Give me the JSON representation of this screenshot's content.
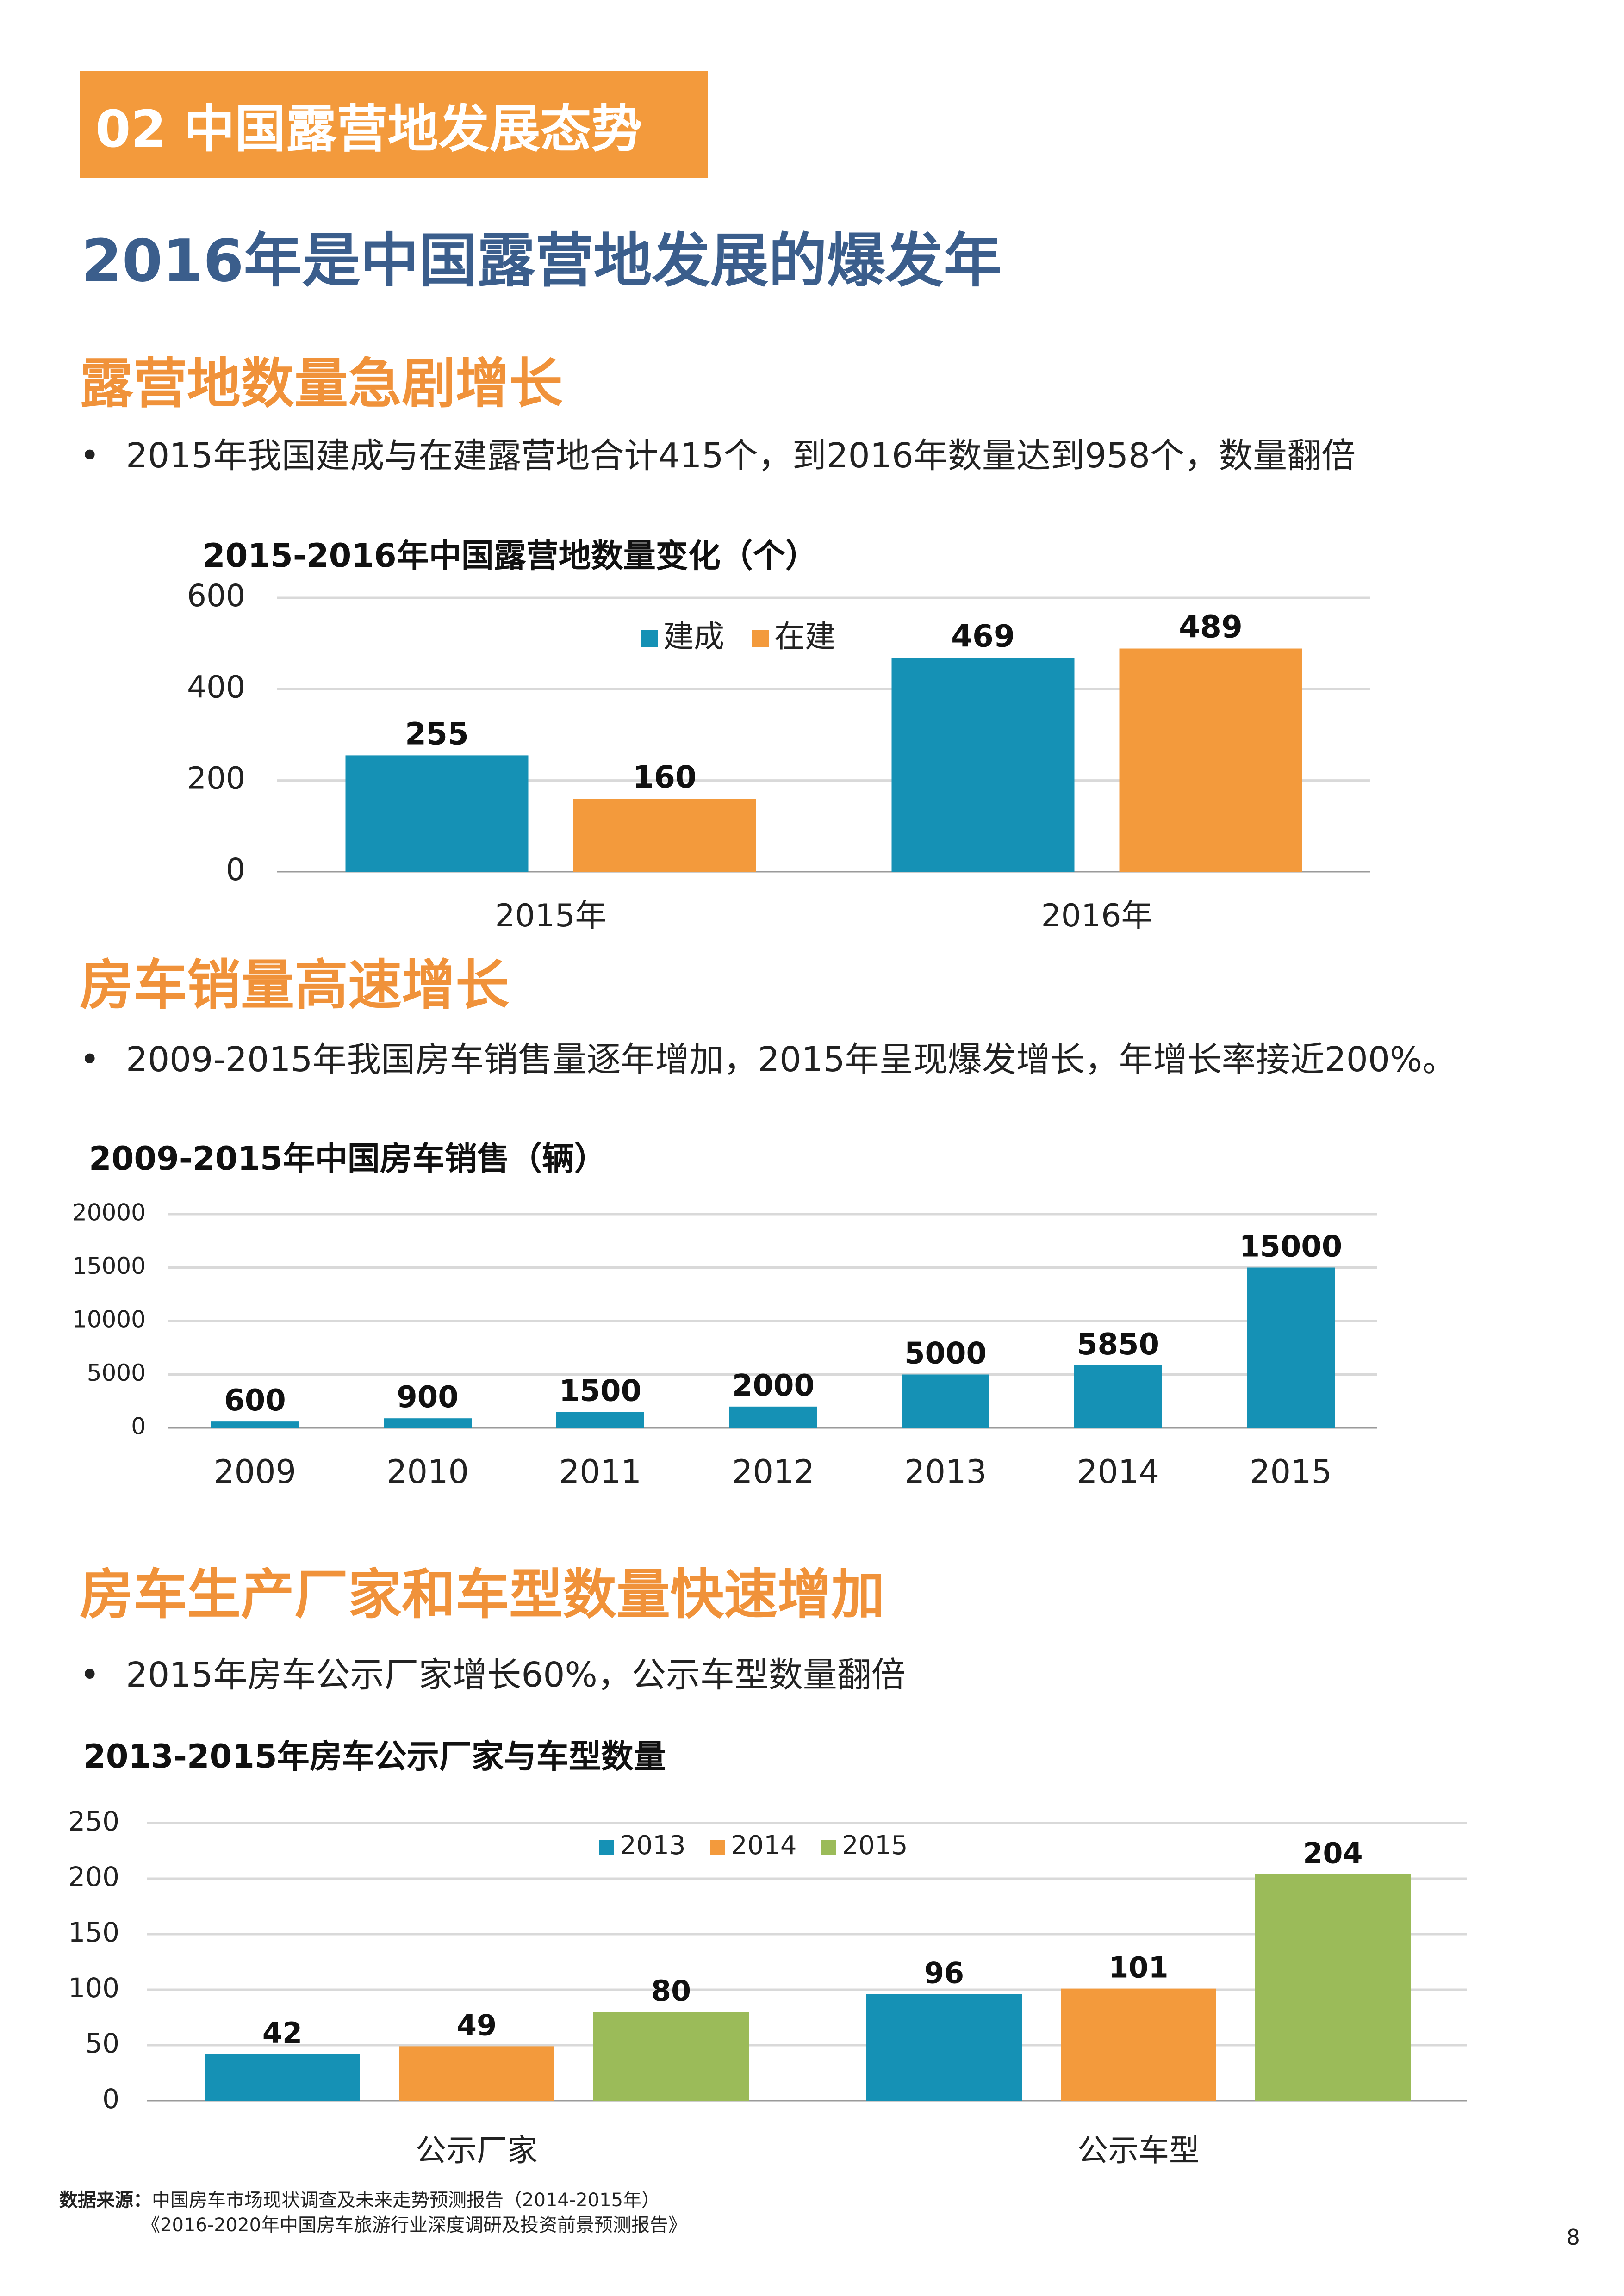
{
  "section_tag": "02 中国露营地发展态势",
  "headline": "2016年是中国露营地发展的爆发年",
  "sections": [
    {
      "heading": "露营地数量急剧增长",
      "bullet": "2015年我国建成与在建露营地合计415个，到2016年数量达到958个，数量翻倍"
    },
    {
      "heading": "房车销量高速增长",
      "bullet": "2009-2015年我国房车销售量逐年增加，2015年呈现爆发增长，年增长率接近200%。"
    },
    {
      "heading": "房车生产厂家和车型数量快速增加",
      "bullet": "2015年房车公示厂家增长60%，公示车型数量翻倍"
    }
  ],
  "bullet_symbol": "•",
  "chart_data": [
    {
      "type": "bar",
      "title": "2015-2016年中国露营地数量变化（个）",
      "categories": [
        "2015年",
        "2016年"
      ],
      "series": [
        {
          "name": "建成",
          "values": [
            255,
            469
          ],
          "color": "#1591b5"
        },
        {
          "name": "在建",
          "values": [
            160,
            489
          ],
          "color": "#f39a3c"
        }
      ],
      "ylim": [
        0,
        600
      ],
      "yticks": [
        0,
        200,
        400,
        600
      ],
      "legend": "top-right",
      "grid": true
    },
    {
      "type": "bar",
      "title": "2009-2015年中国房车销售（辆）",
      "categories": [
        "2009",
        "2010",
        "2011",
        "2012",
        "2013",
        "2014",
        "2015"
      ],
      "series": [
        {
          "values": [
            600,
            900,
            1500,
            2000,
            5000,
            5850,
            15000
          ],
          "color": "#1591b5"
        }
      ],
      "ylim": [
        0,
        20000
      ],
      "yticks": [
        0,
        5000,
        10000,
        15000,
        20000
      ],
      "grid": true
    },
    {
      "type": "bar",
      "title": "2013-2015年房车公示厂家与车型数量",
      "categories": [
        "公示厂家",
        "公示车型"
      ],
      "series": [
        {
          "name": "2013",
          "values": [
            42,
            96
          ],
          "color": "#1591b5"
        },
        {
          "name": "2014",
          "values": [
            49,
            101
          ],
          "color": "#f39a3c"
        },
        {
          "name": "2015",
          "values": [
            80,
            204
          ],
          "color": "#9bbb59"
        }
      ],
      "ylim": [
        0,
        250
      ],
      "yticks": [
        0,
        50,
        100,
        150,
        200,
        250
      ],
      "legend": "top-center",
      "grid": true
    }
  ],
  "source": {
    "label": "数据来源：",
    "line1": "中国房车市场现状调查及未来走势预测报告（2014-2015年）",
    "line2": "《2016-2020年中国房车旅游行业深度调研及投资前景预测报告》"
  },
  "page_number": "8"
}
